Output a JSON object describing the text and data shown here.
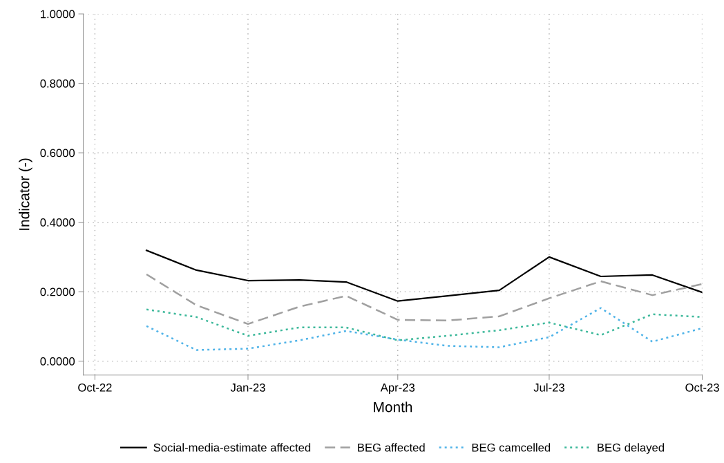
{
  "chart_data": {
    "type": "line",
    "xlabel": "Month",
    "ylabel": "Indicator (-)",
    "x": [
      "2022-11",
      "2022-12",
      "2023-01",
      "2023-02",
      "2023-03",
      "2023-04",
      "2023-05",
      "2023-06",
      "2023-07",
      "2023-08",
      "2023-09",
      "2023-10"
    ],
    "series": [
      {
        "name": "Social-media-estimate affected",
        "color": "#000000",
        "line_style": "solid",
        "values": [
          0.319,
          0.262,
          0.232,
          0.234,
          0.228,
          0.173,
          0.188,
          0.204,
          0.3,
          0.244,
          0.248,
          0.198
        ]
      },
      {
        "name": "BEG affected",
        "color": "#a0a0a0",
        "line_style": "dashed",
        "values": [
          0.25,
          0.161,
          0.107,
          0.157,
          0.188,
          0.119,
          0.117,
          0.129,
          0.181,
          0.23,
          0.19,
          0.222
        ]
      },
      {
        "name": "BEG camcelled",
        "color": "#4fb3e8",
        "line_style": "dotted",
        "values": [
          0.101,
          0.032,
          0.036,
          0.06,
          0.087,
          0.062,
          0.044,
          0.04,
          0.069,
          0.153,
          0.056,
          0.095
        ]
      },
      {
        "name": "BEG delayed",
        "color": "#3cb89a",
        "line_style": "dotted",
        "values": [
          0.149,
          0.127,
          0.073,
          0.097,
          0.097,
          0.06,
          0.073,
          0.089,
          0.111,
          0.075,
          0.135,
          0.127
        ]
      }
    ],
    "xlim": [
      "2022-09-24",
      "2023-10"
    ],
    "xticks": [
      {
        "value": "2022-10",
        "label": "Oct-22"
      },
      {
        "value": "2023-01",
        "label": "Jan-23"
      },
      {
        "value": "2023-04",
        "label": "Apr-23"
      },
      {
        "value": "2023-07",
        "label": "Jul-23"
      },
      {
        "value": "2023-10",
        "label": "Oct-23"
      }
    ],
    "ylim": [
      -0.04,
      1.0
    ],
    "yticks": [
      {
        "value": 0,
        "label": "0.0000"
      },
      {
        "value": 0.2,
        "label": "0.2000"
      },
      {
        "value": 0.4,
        "label": "0.4000"
      },
      {
        "value": 0.6,
        "label": "0.6000"
      },
      {
        "value": 0.8,
        "label": "0.8000"
      },
      {
        "value": 1.0,
        "label": "1.0000"
      }
    ],
    "grid": true,
    "legend": "bottom",
    "marker": "none"
  }
}
